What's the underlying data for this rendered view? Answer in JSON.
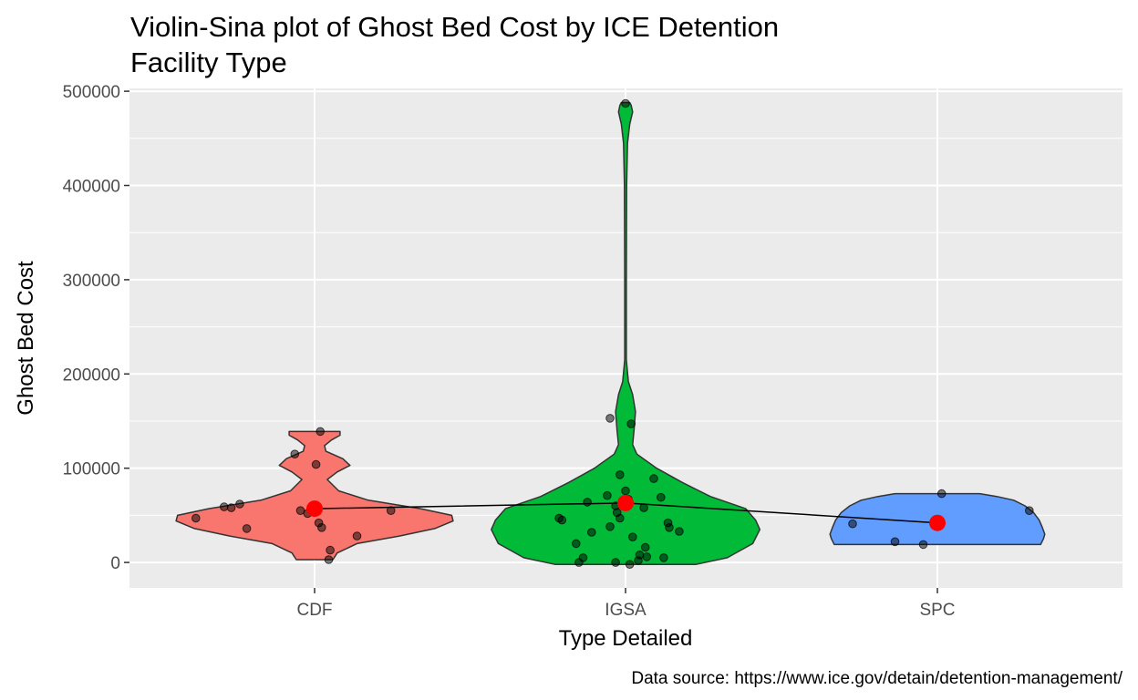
{
  "chart_data": {
    "type": "violin",
    "title_lines": [
      "Violin-Sina plot of Ghost Bed Cost by ICE Detention",
      "Facility Type"
    ],
    "xlabel": "Type Detailed",
    "ylabel": "Ghost Bed Cost",
    "caption": "Data source: https://www.ice.gov/detain/detention-management/",
    "categories": [
      "CDF",
      "IGSA",
      "SPC"
    ],
    "ylim": [
      -27000,
      503000
    ],
    "y_ticks": [
      0,
      100000,
      200000,
      300000,
      400000,
      500000
    ],
    "y_tick_labels": [
      "0",
      "100000",
      "200000",
      "300000",
      "400000",
      "500000"
    ],
    "colors": {
      "CDF": "#F8766D",
      "IGSA": "#00BA38",
      "SPC": "#619CFF",
      "mean": "#FF0000",
      "panel": "#EBEBEB",
      "grid": "#FFFFFF"
    },
    "means": [
      57000,
      63000,
      42000
    ],
    "violins": [
      {
        "name": "CDF",
        "profile": [
          [
            3000,
            0.13
          ],
          [
            10000,
            0.16
          ],
          [
            20000,
            0.3
          ],
          [
            28000,
            0.6
          ],
          [
            36000,
            0.85
          ],
          [
            44000,
            0.98
          ],
          [
            50000,
            0.97
          ],
          [
            57000,
            0.75
          ],
          [
            66000,
            0.38
          ],
          [
            76000,
            0.17
          ],
          [
            88000,
            0.09
          ],
          [
            96000,
            0.16
          ],
          [
            103000,
            0.25
          ],
          [
            110000,
            0.2
          ],
          [
            118000,
            0.08
          ],
          [
            124000,
            0.07
          ],
          [
            130000,
            0.12
          ],
          [
            135000,
            0.18
          ],
          [
            139000,
            0.18
          ]
        ]
      },
      {
        "name": "IGSA",
        "profile": [
          [
            -2000,
            0.5
          ],
          [
            5000,
            0.72
          ],
          [
            20000,
            0.9
          ],
          [
            35000,
            0.95
          ],
          [
            45000,
            0.92
          ],
          [
            57000,
            0.85
          ],
          [
            70000,
            0.6
          ],
          [
            85000,
            0.4
          ],
          [
            100000,
            0.22
          ],
          [
            115000,
            0.08
          ],
          [
            125000,
            0.05
          ],
          [
            140000,
            0.06
          ],
          [
            160000,
            0.07
          ],
          [
            178000,
            0.05
          ],
          [
            192000,
            0.02
          ],
          [
            215000,
            0.006
          ],
          [
            300000,
            0.006
          ],
          [
            400000,
            0.008
          ],
          [
            445000,
            0.014
          ],
          [
            465000,
            0.03
          ],
          [
            478000,
            0.05
          ],
          [
            485000,
            0.04
          ],
          [
            488000,
            0.03
          ]
        ]
      },
      {
        "name": "SPC",
        "profile": [
          [
            19000,
            0.73
          ],
          [
            25000,
            0.75
          ],
          [
            30000,
            0.76
          ],
          [
            38000,
            0.74
          ],
          [
            45000,
            0.72
          ],
          [
            53000,
            0.68
          ],
          [
            60000,
            0.62
          ],
          [
            66000,
            0.54
          ],
          [
            70000,
            0.42
          ],
          [
            73000,
            0.3
          ]
        ]
      }
    ],
    "points": [
      {
        "name": "CDF",
        "dx": [
          -0.84,
          -0.64,
          -0.59,
          -0.53,
          -0.48,
          -0.1,
          -0.05,
          0.03,
          0.05,
          0.11,
          0.1,
          0.3,
          0.54,
          0.04,
          -0.14,
          0.01
        ],
        "y": [
          47000,
          59000,
          58000,
          62000,
          36000,
          55000,
          52000,
          42000,
          37000,
          13000,
          3000,
          28000,
          55000,
          139000,
          115000,
          104000
        ]
      },
      {
        "name": "IGSA",
        "dx": [
          -0.47,
          -0.45,
          -0.35,
          -0.3,
          -0.27,
          -0.24,
          -0.13,
          -0.11,
          -0.06,
          -0.04,
          0.0,
          0.02,
          0.05,
          0.1,
          0.14,
          0.15,
          0.2,
          0.27,
          0.25,
          0.3,
          0.31,
          0.38,
          -0.33,
          -0.07,
          -0.04,
          0.03,
          0.09,
          -0.11,
          0.04,
          0.13,
          -0.07,
          0.0
        ],
        "y": [
          47000,
          45000,
          20000,
          5000,
          64000,
          32000,
          71000,
          38000,
          53000,
          47000,
          76000,
          67000,
          27000,
          8000,
          16000,
          6000,
          89000,
          5000,
          69000,
          42000,
          37000,
          33000,
          0,
          0,
          93000,
          -2000,
          2000,
          153000,
          147000,
          58000,
          60000,
          487000
        ]
      },
      {
        "name": "SPC",
        "dx": [
          -0.6,
          -0.3,
          -0.1,
          0.03,
          0.65
        ],
        "y": [
          41000,
          22000,
          19000,
          73000,
          55000
        ]
      }
    ]
  }
}
